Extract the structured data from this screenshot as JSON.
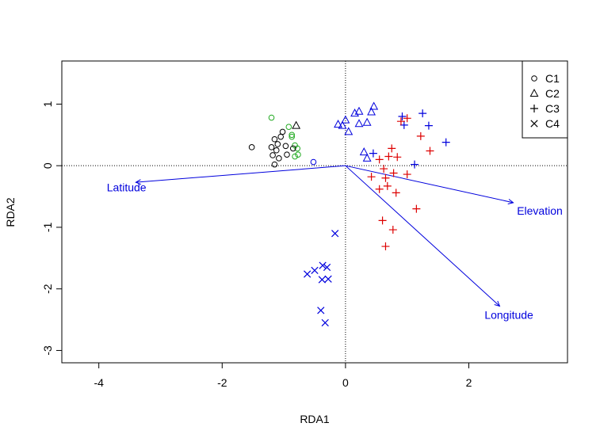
{
  "chart_data": {
    "type": "scatter",
    "title": "",
    "xlabel": "RDA1",
    "ylabel": "RDA2",
    "xlim": [
      -4.6,
      3.6
    ],
    "ylim": [
      -3.2,
      1.7
    ],
    "x_ticks": [
      -4,
      -2,
      0,
      2
    ],
    "y_ticks": [
      -3,
      -2,
      -1,
      0,
      1
    ],
    "grid": false,
    "reference_lines": {
      "x": 0,
      "y": 0,
      "style": "dotted"
    },
    "legend": {
      "placement": "top-right",
      "entries": [
        {
          "label": "C1",
          "marker": "circle"
        },
        {
          "label": "C2",
          "marker": "triangle"
        },
        {
          "label": "C3",
          "marker": "plus"
        },
        {
          "label": "C4",
          "marker": "cross"
        }
      ]
    },
    "colors": {
      "black": "#000000",
      "green": "#22aa22",
      "blue": "#0000dd",
      "red": "#dd0000"
    },
    "series": [
      {
        "name": "C1",
        "marker": "circle",
        "points": [
          {
            "x": -1.52,
            "y": 0.3,
            "color": "black"
          },
          {
            "x": -1.2,
            "y": 0.78,
            "color": "green"
          },
          {
            "x": -1.15,
            "y": 0.43,
            "color": "black"
          },
          {
            "x": -1.2,
            "y": 0.3,
            "color": "black"
          },
          {
            "x": -1.18,
            "y": 0.17,
            "color": "black"
          },
          {
            "x": -1.12,
            "y": 0.25,
            "color": "black"
          },
          {
            "x": -1.1,
            "y": 0.35,
            "color": "black"
          },
          {
            "x": -1.08,
            "y": 0.12,
            "color": "black"
          },
          {
            "x": -1.15,
            "y": 0.02,
            "color": "black"
          },
          {
            "x": -1.05,
            "y": 0.47,
            "color": "black"
          },
          {
            "x": -1.02,
            "y": 0.55,
            "color": "black"
          },
          {
            "x": -0.97,
            "y": 0.32,
            "color": "black"
          },
          {
            "x": -0.92,
            "y": 0.63,
            "color": "green"
          },
          {
            "x": -0.87,
            "y": 0.5,
            "color": "green"
          },
          {
            "x": -0.87,
            "y": 0.47,
            "color": "green"
          },
          {
            "x": -0.82,
            "y": 0.33,
            "color": "green"
          },
          {
            "x": -0.78,
            "y": 0.28,
            "color": "green"
          },
          {
            "x": -0.82,
            "y": 0.15,
            "color": "green"
          },
          {
            "x": -0.85,
            "y": 0.28,
            "color": "black"
          },
          {
            "x": -0.95,
            "y": 0.18,
            "color": "black"
          },
          {
            "x": -0.77,
            "y": 0.18,
            "color": "green"
          },
          {
            "x": -0.52,
            "y": 0.06,
            "color": "blue"
          }
        ]
      },
      {
        "name": "C2",
        "marker": "triangle",
        "points": [
          {
            "x": -0.8,
            "y": 0.65,
            "color": "black"
          },
          {
            "x": -0.12,
            "y": 0.67,
            "color": "blue"
          },
          {
            "x": -0.05,
            "y": 0.65,
            "color": "blue"
          },
          {
            "x": 0.0,
            "y": 0.74,
            "color": "blue"
          },
          {
            "x": 0.05,
            "y": 0.55,
            "color": "blue"
          },
          {
            "x": 0.15,
            "y": 0.85,
            "color": "blue"
          },
          {
            "x": 0.22,
            "y": 0.88,
            "color": "blue"
          },
          {
            "x": 0.22,
            "y": 0.68,
            "color": "blue"
          },
          {
            "x": 0.35,
            "y": 0.7,
            "color": "blue"
          },
          {
            "x": 0.42,
            "y": 0.87,
            "color": "blue"
          },
          {
            "x": 0.46,
            "y": 0.96,
            "color": "blue"
          },
          {
            "x": 0.3,
            "y": 0.22,
            "color": "blue"
          },
          {
            "x": 0.35,
            "y": 0.12,
            "color": "blue"
          }
        ]
      },
      {
        "name": "C3",
        "marker": "plus",
        "points": [
          {
            "x": 0.92,
            "y": 0.8,
            "color": "blue"
          },
          {
            "x": 0.95,
            "y": 0.66,
            "color": "blue"
          },
          {
            "x": 1.25,
            "y": 0.85,
            "color": "blue"
          },
          {
            "x": 1.35,
            "y": 0.65,
            "color": "blue"
          },
          {
            "x": 1.63,
            "y": 0.38,
            "color": "blue"
          },
          {
            "x": 1.12,
            "y": 0.02,
            "color": "blue"
          },
          {
            "x": 0.45,
            "y": 0.2,
            "color": "blue"
          },
          {
            "x": 0.9,
            "y": 0.72,
            "color": "red"
          },
          {
            "x": 1.0,
            "y": 0.77,
            "color": "red"
          },
          {
            "x": 1.22,
            "y": 0.48,
            "color": "red"
          },
          {
            "x": 1.37,
            "y": 0.24,
            "color": "red"
          },
          {
            "x": 0.75,
            "y": 0.28,
            "color": "red"
          },
          {
            "x": 0.84,
            "y": 0.14,
            "color": "red"
          },
          {
            "x": 0.7,
            "y": 0.15,
            "color": "red"
          },
          {
            "x": 0.55,
            "y": 0.1,
            "color": "red"
          },
          {
            "x": 0.62,
            "y": -0.05,
            "color": "red"
          },
          {
            "x": 0.78,
            "y": -0.12,
            "color": "red"
          },
          {
            "x": 0.42,
            "y": -0.18,
            "color": "red"
          },
          {
            "x": 0.65,
            "y": -0.2,
            "color": "red"
          },
          {
            "x": 1.0,
            "y": -0.14,
            "color": "red"
          },
          {
            "x": 0.55,
            "y": -0.38,
            "color": "red"
          },
          {
            "x": 0.68,
            "y": -0.33,
            "color": "red"
          },
          {
            "x": 0.82,
            "y": -0.44,
            "color": "red"
          },
          {
            "x": 1.15,
            "y": -0.7,
            "color": "red"
          },
          {
            "x": 0.6,
            "y": -0.89,
            "color": "red"
          },
          {
            "x": 0.77,
            "y": -1.04,
            "color": "red"
          },
          {
            "x": 0.65,
            "y": -1.31,
            "color": "red"
          }
        ]
      },
      {
        "name": "C4",
        "marker": "cross",
        "points": [
          {
            "x": -0.17,
            "y": -1.1,
            "color": "blue"
          },
          {
            "x": -0.62,
            "y": -1.76,
            "color": "blue"
          },
          {
            "x": -0.5,
            "y": -1.7,
            "color": "blue"
          },
          {
            "x": -0.37,
            "y": -1.62,
            "color": "blue"
          },
          {
            "x": -0.3,
            "y": -1.65,
            "color": "blue"
          },
          {
            "x": -0.38,
            "y": -1.85,
            "color": "blue"
          },
          {
            "x": -0.28,
            "y": -1.84,
            "color": "blue"
          },
          {
            "x": -0.4,
            "y": -2.35,
            "color": "blue"
          },
          {
            "x": -0.33,
            "y": -2.55,
            "color": "blue"
          }
        ]
      }
    ],
    "arrows": [
      {
        "label": "Latitude",
        "x": -3.4,
        "y": -0.27,
        "label_x": -3.55,
        "label_y": -0.35
      },
      {
        "label": "Elevation",
        "x": 2.72,
        "y": -0.6,
        "label_x": 3.15,
        "label_y": -0.73
      },
      {
        "label": "Longitude",
        "x": 2.5,
        "y": -2.28,
        "label_x": 2.65,
        "label_y": -2.42
      }
    ]
  }
}
